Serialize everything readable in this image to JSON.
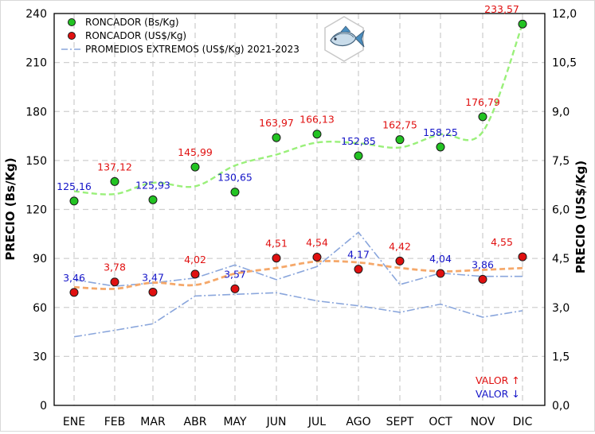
{
  "chart_data": {
    "type": "line",
    "categories": [
      "ENE",
      "FEB",
      "MAR",
      "ABR",
      "MAY",
      "JUN",
      "JUL",
      "AGO",
      "SEPT",
      "OCT",
      "NOV",
      "DIC"
    ],
    "ylabel_left": "PRECIO (Bs/Kg)",
    "ylabel_right": "PRECIO (US$/Kg)",
    "ylim_left": [
      0,
      240
    ],
    "ylim_right": [
      0,
      12
    ],
    "yticks_left": [
      "0",
      "30",
      "60",
      "90",
      "120",
      "150",
      "180",
      "210",
      "240"
    ],
    "yticks_right": [
      "0,0",
      "1,5",
      "3,0",
      "4,5",
      "6,0",
      "7,5",
      "9,0",
      "10,5",
      "12,0"
    ],
    "grid": true,
    "legend_position": "top-left",
    "series": [
      {
        "name": "RONCADOR (Bs/Kg)",
        "axis": "left",
        "color": "#22c322",
        "trend_color": "#9af07a",
        "values": [
          125.16,
          137.12,
          125.93,
          145.99,
          130.65,
          163.97,
          166.13,
          152.85,
          162.75,
          158.25,
          176.79,
          233.57
        ],
        "labels": [
          "125,16",
          "137,12",
          "125,93",
          "145,99",
          "130,65",
          "163,97",
          "166,13",
          "152,85",
          "162,75",
          "158,25",
          "176,79",
          "233,57"
        ],
        "label_dir": [
          "down",
          "up",
          "down",
          "up",
          "down",
          "up",
          "up",
          "down",
          "up",
          "down",
          "up",
          "up"
        ]
      },
      {
        "name": "RONCADOR (US$/Kg)",
        "axis": "right",
        "color": "#e01010",
        "trend_color": "#f5a86a",
        "values": [
          3.46,
          3.78,
          3.47,
          4.02,
          3.57,
          4.51,
          4.54,
          4.17,
          4.42,
          4.04,
          3.86,
          4.55
        ],
        "labels": [
          "3,46",
          "3,78",
          "3,47",
          "4,02",
          "3,57",
          "4,51",
          "4,54",
          "4,17",
          "4,42",
          "4,04",
          "3,86",
          "4,55"
        ],
        "label_dir": [
          "down",
          "up",
          "down",
          "up",
          "down",
          "up",
          "up",
          "down",
          "up",
          "down",
          "down",
          "up"
        ]
      },
      {
        "name": "PROMEDIOS EXTREMOS (US$/Kg) 2021-2023",
        "axis": "right",
        "color": "#8aa6dc",
        "upper": [
          3.85,
          3.65,
          3.75,
          3.9,
          4.3,
          3.85,
          4.25,
          5.3,
          3.7,
          4.05,
          3.95,
          3.95
        ],
        "lower": [
          2.1,
          2.3,
          2.5,
          3.35,
          3.4,
          3.45,
          3.2,
          3.05,
          2.85,
          3.1,
          2.7,
          2.9
        ]
      }
    ],
    "annotations": {
      "up": "VALOR ↑",
      "down": "VALOR ↓",
      "up_color": "#e01010",
      "down_color": "#1414c8"
    }
  },
  "icon": "fish-icon"
}
